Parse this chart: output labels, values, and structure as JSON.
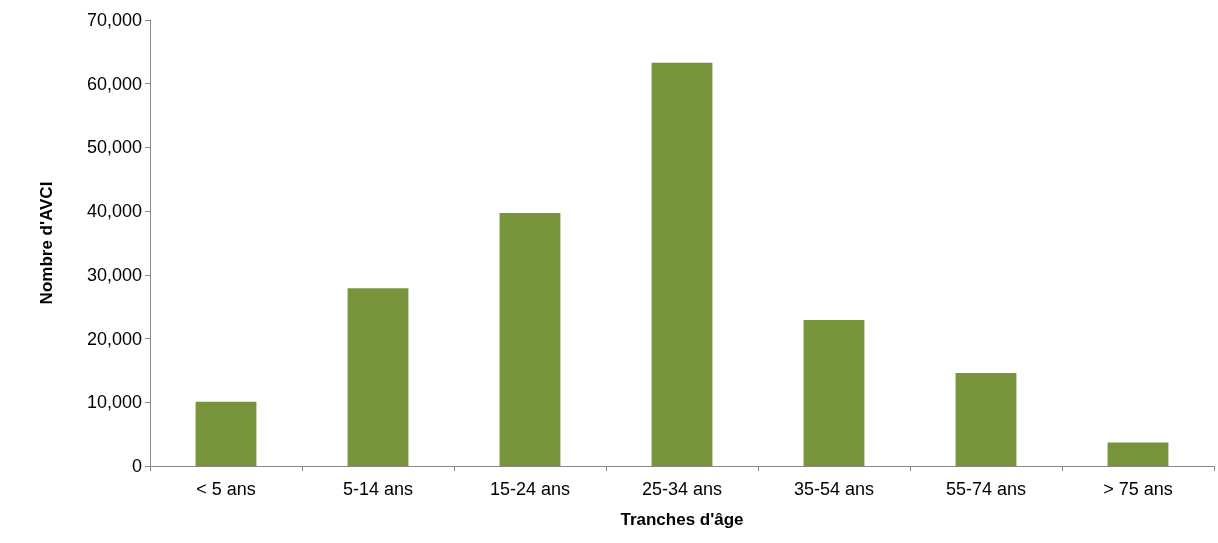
{
  "chart_data": {
    "type": "bar",
    "xlabel": "Tranches d'âge",
    "ylabel": "Nombre d'AVCI",
    "categories": [
      "< 5 ans",
      "5-14 ans",
      "15-24 ans",
      "25-34 ans",
      "35-54 ans",
      "55-74 ans",
      "> 75 ans"
    ],
    "values": [
      10100,
      27900,
      39700,
      63300,
      22900,
      14600,
      3700
    ],
    "color": "#77933c",
    "ylim": [
      0,
      70000
    ],
    "yticks": [
      0,
      {
        "value": 10000,
        "label": "10,000"
      },
      {
        "value": 20000,
        "label": "20,000"
      },
      {
        "value": 30000,
        "label": "30,000"
      },
      {
        "value": 40000,
        "label": "40,000"
      },
      {
        "value": 50000,
        "label": "50,000"
      },
      {
        "value": 60000,
        "label": "60,000"
      },
      {
        "value": 70000,
        "label": "70,000"
      }
    ],
    "grid": false
  }
}
